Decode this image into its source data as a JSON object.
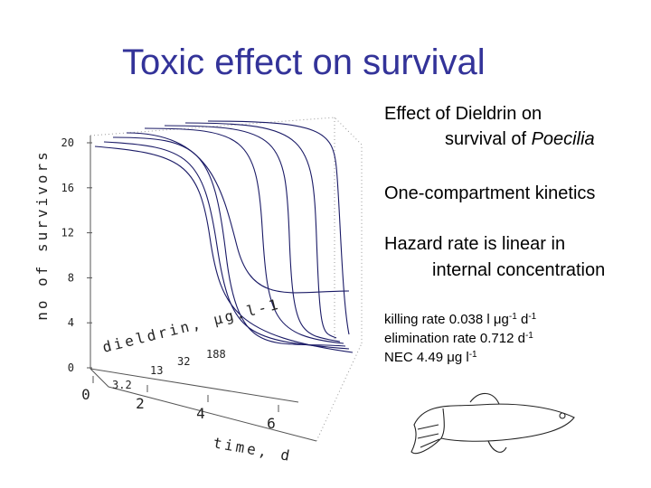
{
  "title": "Toxic effect on survival",
  "figure": {
    "z_label": "no of survivors",
    "z_ticks": [
      "20",
      "16",
      "12",
      "8",
      "4",
      "0"
    ],
    "conc_label": "dieldrin, μg.l-1",
    "conc_ticks": [
      "3.2",
      "13",
      "32",
      "188"
    ],
    "time_label": "time, d",
    "time_ticks": [
      "0",
      "2",
      "4",
      "6"
    ]
  },
  "bullets": [
    {
      "line1": "Effect of Dieldrin on",
      "line2": [
        "survival of ",
        "Poecilia"
      ]
    },
    {
      "line1": "One-compartment kinetics"
    },
    {
      "line1": "Hazard rate is linear in",
      "line2": [
        "internal concentration"
      ]
    }
  ],
  "parameters": [
    [
      "killing rate 0.038 l μg",
      "-1",
      " d",
      "-1"
    ],
    [
      "elimination rate 0.712 d",
      "-1"
    ],
    [
      "NEC 4.49 μg l",
      "-1"
    ]
  ]
}
